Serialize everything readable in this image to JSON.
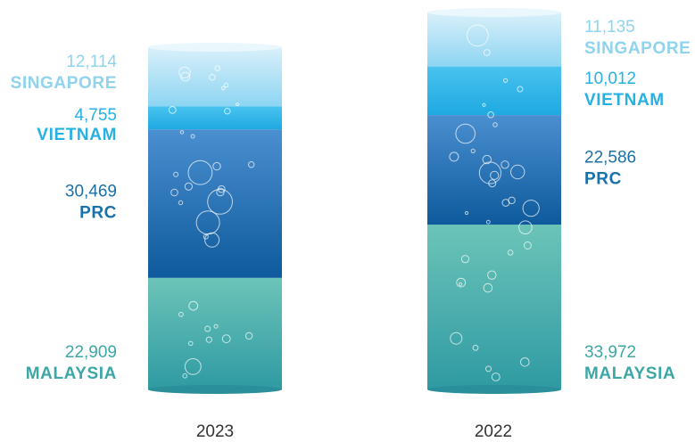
{
  "colors": {
    "singapore_label": "#8fd3ee",
    "vietnam_label": "#27b1e3",
    "prc_label": "#1a70a8",
    "malaysia_label": "#3ba8a6",
    "year_label": "#333333"
  },
  "chart_data": {
    "type": "bar",
    "stacked": true,
    "categories": [
      "2023",
      "2022"
    ],
    "series": [
      {
        "name": "MALAYSIA",
        "values": [
          22909,
          33972
        ],
        "labels": [
          "22,909",
          "33,972"
        ],
        "color_top": "#6cc4b8",
        "color_bottom": "#2f9aa3"
      },
      {
        "name": "PRC",
        "values": [
          30469,
          22586
        ],
        "labels": [
          "30,469",
          "22,586"
        ],
        "color_top": "#4a8fd0",
        "color_bottom": "#0e5a9c"
      },
      {
        "name": "VIETNAM",
        "values": [
          4755,
          10012
        ],
        "labels": [
          "4,755",
          "10,012"
        ],
        "color_top": "#49c3ef",
        "color_bottom": "#1fa9e2"
      },
      {
        "name": "SINGAPORE",
        "values": [
          12114,
          11135
        ],
        "labels": [
          "12,114",
          "11,135"
        ],
        "color_top": "#d9f0fa",
        "color_bottom": "#8dd5f2"
      }
    ],
    "legend": "labels beside columns",
    "grid": false
  }
}
